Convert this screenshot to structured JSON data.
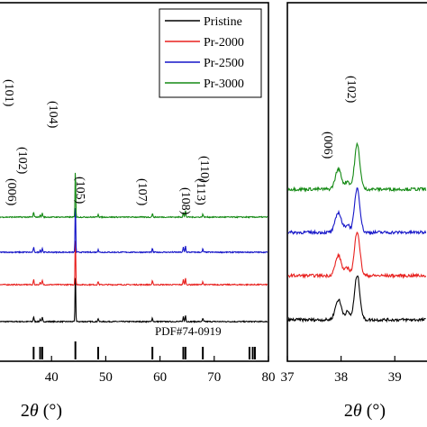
{
  "chart_data": [
    {
      "type": "line",
      "panel": "full pattern",
      "xlabel_parts": [
        "2",
        "θ",
        " (°)"
      ],
      "xlim": [
        30,
        80
      ],
      "x_ticks": [
        40,
        50,
        60,
        70,
        80
      ],
      "legend": {
        "placement": "top-right",
        "entries": [
          {
            "name": "Pristine",
            "color": "#000000"
          },
          {
            "name": "Pr-2000",
            "color": "#e8201e"
          },
          {
            "name": "Pr-2500",
            "color": "#1515c8"
          },
          {
            "name": "Pr-3000",
            "color": "#158a15"
          }
        ]
      },
      "series": [
        {
          "name": "Pristine",
          "color": "#000000",
          "baseline_level": 0.0
        },
        {
          "name": "Pr-2000",
          "color": "#e8201e",
          "baseline_level": 1.0
        },
        {
          "name": "Pr-2500",
          "color": "#1515c8",
          "baseline_level": 2.0
        },
        {
          "name": "Pr-3000",
          "color": "#158a15",
          "baseline_level": 3.0
        }
      ],
      "peaks": [
        {
          "label": "(101)",
          "x": 36.7,
          "height": 0.55
        },
        {
          "label": "(006)",
          "x": 37.9,
          "height": 0.25
        },
        {
          "label": "(102)",
          "x": 38.3,
          "height": 0.45
        },
        {
          "label": "(104)",
          "x": 44.4,
          "height": 5.5
        },
        {
          "label": "(105)",
          "x": 48.6,
          "height": 0.35
        },
        {
          "label": "(107)",
          "x": 58.6,
          "height": 0.4
        },
        {
          "label": "(108)",
          "x": 64.3,
          "height": 0.55
        },
        {
          "label": "(110)",
          "x": 64.7,
          "height": 0.7
        },
        {
          "label": "(113)",
          "x": 67.9,
          "height": 0.35
        }
      ],
      "reference": {
        "label": "PDF#74-0919",
        "positions": [
          36.7,
          37.9,
          38.3,
          44.4,
          48.6,
          58.6,
          64.3,
          64.7,
          67.9,
          76.5,
          77.1,
          77.5
        ]
      }
    },
    {
      "type": "line",
      "panel": "zoomed region",
      "xlabel_parts": [
        "2",
        "θ",
        " (°)"
      ],
      "xlim": [
        37,
        39.7
      ],
      "x_ticks": [
        37,
        38,
        39
      ],
      "peaks": [
        {
          "label": "(006)",
          "x": 37.95,
          "height": 0.9
        },
        {
          "label": "(102)",
          "x": 38.3,
          "height": 2.0
        }
      ],
      "series": [
        {
          "name": "Pristine",
          "color": "#000000",
          "baseline_level": 0.0
        },
        {
          "name": "Pr-2000",
          "color": "#e8201e",
          "baseline_level": 1.0
        },
        {
          "name": "Pr-2500",
          "color": "#1515c8",
          "baseline_level": 2.0
        },
        {
          "name": "Pr-3000",
          "color": "#158a15",
          "baseline_level": 3.0
        }
      ]
    }
  ]
}
